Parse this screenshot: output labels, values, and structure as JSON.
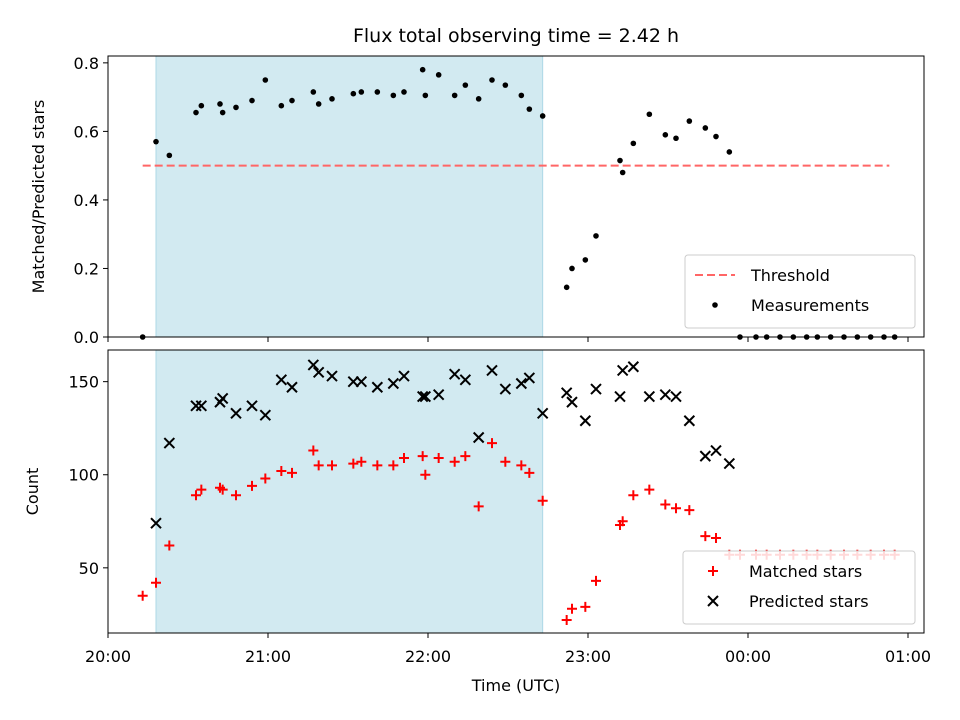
{
  "chart_data": {
    "title": "Flux total observing time = 2.42 h",
    "xlabel": "Time (UTC)",
    "x_ticks": [
      "20:00",
      "21:00",
      "22:00",
      "23:00",
      "00:00",
      "01:00"
    ],
    "shaded_interval": [
      "20:18",
      "22:43"
    ],
    "colors": {
      "shade": "#add8e6",
      "threshold": "#ff6666",
      "measurements": "#000000",
      "matched": "#ff0000",
      "predicted": "#000000"
    },
    "panels": [
      {
        "type": "scatter",
        "ylabel": "Matched/Predicted stars",
        "ylim": [
          0,
          0.82
        ],
        "y_ticks": [
          0.0,
          0.2,
          0.4,
          0.6,
          0.8
        ],
        "legend_position": "lower-right",
        "threshold": {
          "name": "Threshold",
          "value": 0.5,
          "x_start": "20:13",
          "x_end": "24:53"
        },
        "series": [
          {
            "name": "Measurements",
            "marker": "dot",
            "points": [
              [
                "20:13",
                0.0
              ],
              [
                "20:18",
                0.57
              ],
              [
                "20:23",
                0.53
              ],
              [
                "20:33",
                0.655
              ],
              [
                "20:35",
                0.675
              ],
              [
                "20:42",
                0.68
              ],
              [
                "20:43",
                0.655
              ],
              [
                "20:48",
                0.67
              ],
              [
                "20:54",
                0.69
              ],
              [
                "20:59",
                0.75
              ],
              [
                "21:05",
                0.675
              ],
              [
                "21:09",
                0.69
              ],
              [
                "21:17",
                0.715
              ],
              [
                "21:19",
                0.68
              ],
              [
                "21:24",
                0.695
              ],
              [
                "21:32",
                0.71
              ],
              [
                "21:35",
                0.715
              ],
              [
                "21:41",
                0.715
              ],
              [
                "21:47",
                0.705
              ],
              [
                "21:51",
                0.715
              ],
              [
                "21:58",
                0.78
              ],
              [
                "21:59",
                0.705
              ],
              [
                "22:04",
                0.765
              ],
              [
                "22:10",
                0.705
              ],
              [
                "22:14",
                0.735
              ],
              [
                "22:19",
                0.695
              ],
              [
                "22:24",
                0.75
              ],
              [
                "22:29",
                0.735
              ],
              [
                "22:35",
                0.705
              ],
              [
                "22:38",
                0.665
              ],
              [
                "22:43",
                0.645
              ],
              [
                "22:52",
                0.145
              ],
              [
                "22:54",
                0.2
              ],
              [
                "22:59",
                0.225
              ],
              [
                "23:03",
                0.295
              ],
              [
                "23:12",
                0.515
              ],
              [
                "23:13",
                0.48
              ],
              [
                "23:17",
                0.565
              ],
              [
                "23:23",
                0.65
              ],
              [
                "23:29",
                0.59
              ],
              [
                "23:33",
                0.58
              ],
              [
                "23:38",
                0.63
              ],
              [
                "23:44",
                0.61
              ],
              [
                "23:48",
                0.585
              ],
              [
                "23:53",
                0.54
              ],
              [
                "23:57",
                0.0
              ],
              [
                "24:03",
                0.0
              ],
              [
                "24:07",
                0.0
              ],
              [
                "24:12",
                0.0
              ],
              [
                "24:17",
                0.0
              ],
              [
                "24:22",
                0.0
              ],
              [
                "24:26",
                0.0
              ],
              [
                "24:31",
                0.0
              ],
              [
                "24:36",
                0.0
              ],
              [
                "24:41",
                0.0
              ],
              [
                "24:46",
                0.0
              ],
              [
                "24:51",
                0.0
              ],
              [
                "24:55",
                0.0
              ]
            ]
          }
        ]
      },
      {
        "type": "scatter",
        "ylabel": "Count",
        "ylim": [
          15,
          167
        ],
        "y_ticks": [
          50,
          100,
          150
        ],
        "legend_position": "lower-right",
        "series": [
          {
            "name": "Matched stars",
            "marker": "plus",
            "points": [
              [
                "20:13",
                35
              ],
              [
                "20:18",
                42
              ],
              [
                "20:23",
                62
              ],
              [
                "20:33",
                89
              ],
              [
                "20:35",
                92
              ],
              [
                "20:42",
                93
              ],
              [
                "20:43",
                92
              ],
              [
                "20:48",
                89
              ],
              [
                "20:54",
                94
              ],
              [
                "20:59",
                98
              ],
              [
                "21:05",
                102
              ],
              [
                "21:09",
                101
              ],
              [
                "21:17",
                113
              ],
              [
                "21:19",
                105
              ],
              [
                "21:24",
                105
              ],
              [
                "21:32",
                106
              ],
              [
                "21:35",
                107
              ],
              [
                "21:41",
                105
              ],
              [
                "21:47",
                105
              ],
              [
                "21:51",
                109
              ],
              [
                "21:58",
                110
              ],
              [
                "21:59",
                100
              ],
              [
                "22:04",
                109
              ],
              [
                "22:10",
                107
              ],
              [
                "22:14",
                110
              ],
              [
                "22:19",
                83
              ],
              [
                "22:24",
                117
              ],
              [
                "22:29",
                107
              ],
              [
                "22:35",
                105
              ],
              [
                "22:38",
                101
              ],
              [
                "22:43",
                86
              ],
              [
                "22:52",
                22
              ],
              [
                "22:54",
                28
              ],
              [
                "22:59",
                29
              ],
              [
                "23:03",
                43
              ],
              [
                "23:12",
                73
              ],
              [
                "23:13",
                75
              ],
              [
                "23:17",
                89
              ],
              [
                "23:23",
                92
              ],
              [
                "23:29",
                84
              ],
              [
                "23:33",
                82
              ],
              [
                "23:38",
                81
              ],
              [
                "23:44",
                67
              ],
              [
                "23:48",
                66
              ],
              [
                "23:53",
                57
              ],
              [
                "23:57",
                57
              ],
              [
                "24:03",
                57
              ],
              [
                "24:07",
                57
              ],
              [
                "24:12",
                57
              ],
              [
                "24:17",
                57
              ],
              [
                "24:22",
                57
              ],
              [
                "24:26",
                57
              ],
              [
                "24:31",
                57
              ],
              [
                "24:36",
                57
              ],
              [
                "24:41",
                57
              ],
              [
                "24:46",
                57
              ],
              [
                "24:51",
                57
              ],
              [
                "24:55",
                57
              ]
            ]
          },
          {
            "name": "Predicted stars",
            "marker": "x",
            "points": [
              [
                "20:18",
                74
              ],
              [
                "20:23",
                117
              ],
              [
                "20:33",
                137
              ],
              [
                "20:35",
                137
              ],
              [
                "20:42",
                139
              ],
              [
                "20:43",
                141
              ],
              [
                "20:48",
                133
              ],
              [
                "20:54",
                137
              ],
              [
                "20:59",
                132
              ],
              [
                "21:05",
                151
              ],
              [
                "21:09",
                147
              ],
              [
                "21:17",
                159
              ],
              [
                "21:19",
                155
              ],
              [
                "21:24",
                153
              ],
              [
                "21:32",
                150
              ],
              [
                "21:35",
                150
              ],
              [
                "21:41",
                147
              ],
              [
                "21:47",
                149
              ],
              [
                "21:51",
                153
              ],
              [
                "21:58",
                142
              ],
              [
                "21:59",
                142
              ],
              [
                "22:04",
                143
              ],
              [
                "22:10",
                154
              ],
              [
                "22:14",
                151
              ],
              [
                "22:19",
                120
              ],
              [
                "22:24",
                156
              ],
              [
                "22:29",
                146
              ],
              [
                "22:35",
                149
              ],
              [
                "22:38",
                152
              ],
              [
                "22:43",
                133
              ],
              [
                "22:52",
                144
              ],
              [
                "22:54",
                139
              ],
              [
                "22:59",
                129
              ],
              [
                "23:03",
                146
              ],
              [
                "23:12",
                142
              ],
              [
                "23:13",
                156
              ],
              [
                "23:17",
                158
              ],
              [
                "23:23",
                142
              ],
              [
                "23:29",
                143
              ],
              [
                "23:33",
                142
              ],
              [
                "23:38",
                129
              ],
              [
                "23:44",
                110
              ],
              [
                "23:48",
                113
              ],
              [
                "23:53",
                106
              ]
            ]
          }
        ]
      }
    ]
  }
}
